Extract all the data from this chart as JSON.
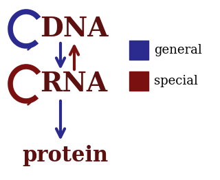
{
  "bg_color": "#ffffff",
  "dna_text": "DNA",
  "rna_text": "RNA",
  "protein_text": "protein",
  "general_label": "general",
  "special_label": "special",
  "blue_color": "#2b2b8f",
  "dark_red_color": "#7a1010",
  "brown_color": "#5c1010",
  "font_size_main": 28,
  "font_size_protein": 22,
  "font_size_legend": 13
}
